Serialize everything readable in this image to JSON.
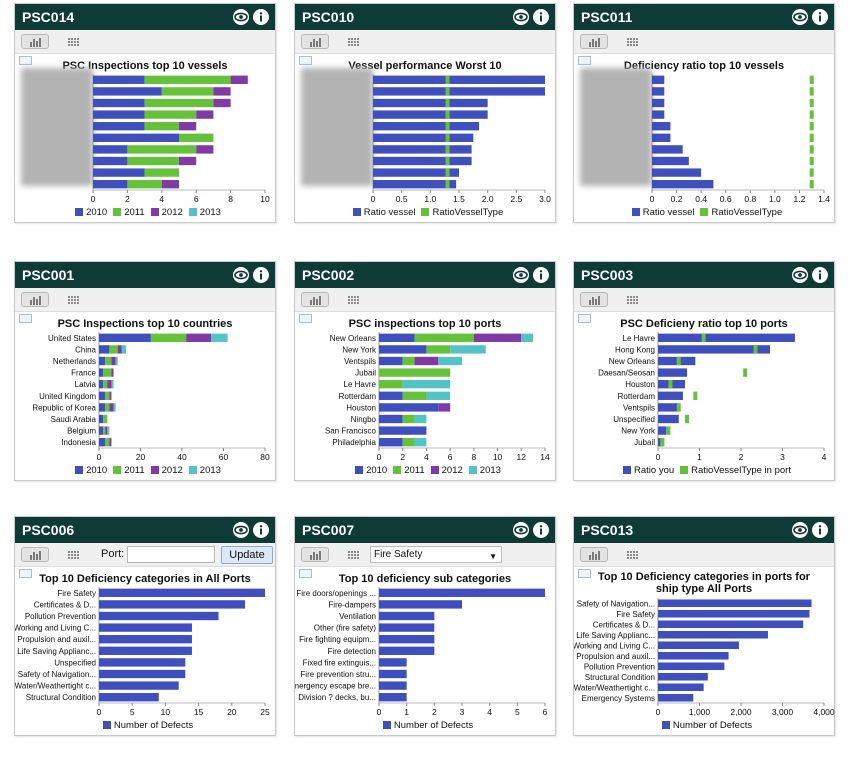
{
  "colors": {
    "header": "#0e3b35",
    "s2010": "#3f4fbe",
    "s2011": "#66c13a",
    "s2012": "#7f3aa3",
    "s2013": "#53c3c7",
    "single": "#3f4fbe",
    "ratio_type": "#66c13a"
  },
  "icons": [
    "eye-icon",
    "info-icon",
    "bar-chart-view-icon",
    "table-view-icon",
    "export-image-icon"
  ],
  "widgets": {
    "psc014": {
      "id": "PSC014",
      "chart_data": {
        "type": "bar",
        "orientation": "horizontal",
        "stacked": true,
        "title": "PSC Inspections top 10 vessels",
        "categories_hidden": true,
        "xlim": [
          0,
          10
        ],
        "xticks": [
          "0",
          "2",
          "4",
          "6",
          "8",
          "10"
        ],
        "legend": [
          "2010",
          "2011",
          "2012",
          "2013"
        ],
        "series": [
          {
            "name": "2010",
            "values": [
              3,
              4,
              3,
              3,
              3,
              5,
              2,
              2,
              3,
              2
            ]
          },
          {
            "name": "2011",
            "values": [
              5,
              3,
              4,
              3,
              2,
              2,
              4,
              3,
              2,
              2
            ]
          },
          {
            "name": "2012",
            "values": [
              1,
              1,
              1,
              1,
              1,
              0,
              1,
              1,
              0,
              1
            ]
          },
          {
            "name": "2013",
            "values": [
              0,
              0,
              0,
              0,
              0,
              0,
              0,
              0,
              0,
              0
            ]
          }
        ]
      }
    },
    "psc010": {
      "id": "PSC010",
      "chart_data": {
        "type": "bar",
        "orientation": "horizontal",
        "title": "Vessel performance Worst 10",
        "categories_hidden": true,
        "xlim": [
          0,
          3
        ],
        "xticks": [
          "0",
          "0.5",
          "1.0",
          "1.5",
          "2.0",
          "2.5",
          "3.0"
        ],
        "legend": [
          "Ratio vessel",
          "RatioVesselType"
        ],
        "series": [
          {
            "name": "Ratio vessel",
            "values": [
              3.0,
              3.0,
              2.0,
              2.0,
              1.85,
              1.75,
              1.72,
              1.72,
              1.5,
              1.45
            ]
          },
          {
            "name": "RatioVesselType",
            "values": [
              1.3,
              1.3,
              1.3,
              1.3,
              1.3,
              1.3,
              1.3,
              1.3,
              1.3,
              1.3
            ]
          }
        ]
      }
    },
    "psc011": {
      "id": "PSC011",
      "chart_data": {
        "type": "bar",
        "orientation": "horizontal",
        "title": "Deficiency ratio top 10 vessels",
        "categories_hidden": true,
        "xlim": [
          0,
          1.4
        ],
        "xticks": [
          "0",
          "0.2",
          "0.4",
          "0.6",
          "0.8",
          "1.0",
          "1.2",
          "1.4"
        ],
        "legend": [
          "Ratio vessel",
          "RatioVesselType"
        ],
        "series": [
          {
            "name": "Ratio vessel",
            "values": [
              0.1,
              0.1,
              0.1,
              0.1,
              0.15,
              0.15,
              0.25,
              0.3,
              0.4,
              0.5
            ]
          },
          {
            "name": "RatioVesselType",
            "values": [
              1.3,
              1.3,
              1.3,
              1.3,
              1.3,
              1.3,
              1.3,
              1.3,
              1.3,
              1.3
            ]
          }
        ]
      }
    },
    "psc001": {
      "id": "PSC001",
      "chart_data": {
        "type": "bar",
        "orientation": "horizontal",
        "stacked": true,
        "title": "PSC Inspections top 10 countries",
        "categories": [
          "United States",
          "China",
          "Netherlands",
          "France",
          "Latvia",
          "United Kingdom",
          "Republic of Korea",
          "Saudi Arabia",
          "Belgium",
          "Indonesia"
        ],
        "xlim": [
          0,
          80
        ],
        "xticks": [
          "0",
          "20",
          "40",
          "60",
          "80"
        ],
        "legend": [
          "2010",
          "2011",
          "2012",
          "2013"
        ],
        "series": [
          {
            "name": "2010",
            "values": [
              25,
              5,
              3,
              2,
              2,
              3,
              3,
              2,
              2,
              3
            ]
          },
          {
            "name": "2011",
            "values": [
              17,
              4,
              3,
              4,
              2,
              2,
              2,
              2,
              1,
              2
            ]
          },
          {
            "name": "2012",
            "values": [
              12,
              2,
              2,
              1,
              2,
              1,
              2,
              0,
              1,
              1
            ]
          },
          {
            "name": "2013",
            "values": [
              8,
              2,
              1,
              0,
              1,
              0,
              1,
              0,
              1,
              0
            ]
          }
        ]
      }
    },
    "psc002": {
      "id": "PSC002",
      "chart_data": {
        "type": "bar",
        "orientation": "horizontal",
        "stacked": true,
        "title": "PSC inspections top 10 ports",
        "categories": [
          "New Orleans",
          "New York",
          "Ventspils",
          "Jubail",
          "Le Havre",
          "Rotterdam",
          "Houston",
          "Ningbo",
          "San Francisco",
          "Philadelphia"
        ],
        "xlim": [
          0,
          14
        ],
        "xticks": [
          "0",
          "2",
          "4",
          "6",
          "8",
          "10",
          "12",
          "14"
        ],
        "legend": [
          "2010",
          "2011",
          "2012",
          "2013"
        ],
        "series": [
          {
            "name": "2010",
            "values": [
              3,
              4,
              2,
              0,
              0,
              2,
              5,
              2,
              4,
              2
            ]
          },
          {
            "name": "2011",
            "values": [
              5,
              2,
              1,
              6,
              2,
              2,
              0,
              1,
              0,
              1
            ]
          },
          {
            "name": "2012",
            "values": [
              4,
              0,
              2,
              0,
              0,
              0,
              1,
              0,
              0,
              0
            ]
          },
          {
            "name": "2013",
            "values": [
              1,
              3,
              2,
              0,
              4,
              2,
              0,
              1,
              0,
              1
            ]
          }
        ]
      }
    },
    "psc003": {
      "id": "PSC003",
      "chart_data": {
        "type": "bar",
        "orientation": "horizontal",
        "title": "PSC Deficieny ratio top 10 ports",
        "categories": [
          "Le Havre",
          "Hong Kong",
          "New Orleans",
          "Daesan/Seosan",
          "Houston",
          "Rotterdam",
          "Ventspils",
          "Unspecified",
          "New York",
          "Jubail"
        ],
        "xlim": [
          0,
          4
        ],
        "xticks": [
          "0",
          "1",
          "2",
          "3",
          "4"
        ],
        "legend": [
          "Ratio you",
          "RatioVesselType in port"
        ],
        "series": [
          {
            "name": "Ratio you",
            "values": [
              3.3,
              2.7,
              0.9,
              0.7,
              0.65,
              0.6,
              0.5,
              0.5,
              0.2,
              0.15
            ]
          },
          {
            "name": "RatioVesselType in port",
            "values": [
              1.1,
              2.35,
              0.5,
              2.1,
              0.3,
              0.9,
              0.5,
              0.7,
              0.25,
              0.1
            ]
          }
        ]
      }
    },
    "psc006": {
      "id": "PSC006",
      "port_label": "Port:",
      "port_value": "",
      "update_label": "Update",
      "chart_data": {
        "type": "bar",
        "orientation": "horizontal",
        "title": "Top 10 Deficiency categories in All Ports",
        "categories": [
          "Fire Safety",
          "Certificates & D...",
          "Pollution Prevention",
          "Working and Living C...",
          "Propulsion and auxil...",
          "Life Saving Applianc...",
          "Unspecified",
          "Safety of Navigation...",
          "Water/Weathertight c...",
          "Structural Condition"
        ],
        "xlim": [
          0,
          25
        ],
        "xticks": [
          "0",
          "5",
          "10",
          "15",
          "20",
          "25"
        ],
        "legend": [
          "Number of Defects"
        ],
        "series": [
          {
            "name": "Number of Defects",
            "values": [
              25,
              22,
              18,
              14,
              14,
              14,
              13,
              13,
              12,
              9
            ]
          }
        ]
      }
    },
    "psc007": {
      "id": "PSC007",
      "select_value": "Fire Safety",
      "chart_data": {
        "type": "bar",
        "orientation": "horizontal",
        "title": "Top 10 deficiency sub categories",
        "categories": [
          "Fire doors/openings ...",
          "Fire-dampers",
          "Ventilation",
          "Other (fire safety)",
          "Fire fighting equipm...",
          "Fire detection",
          "Fixed fire extinguis...",
          "Fire prevention stru...",
          "Emergency escape bre...",
          "Division ? decks, bu..."
        ],
        "xlim": [
          0,
          6
        ],
        "xticks": [
          "0",
          "1",
          "2",
          "3",
          "4",
          "5",
          "6"
        ],
        "legend": [
          "Number of Defects"
        ],
        "series": [
          {
            "name": "Number of Defects",
            "values": [
              6,
              3,
              2,
              2,
              2,
              2,
              1,
              1,
              1,
              1
            ]
          }
        ]
      }
    },
    "psc013": {
      "id": "PSC013",
      "chart_data": {
        "type": "bar",
        "orientation": "horizontal",
        "title": "Top 10 Deficiency categories in ports for ship type All Ports",
        "title_lines": [
          "Top 10 Deficiency categories in ports for",
          "ship type All Ports"
        ],
        "categories": [
          "Safety of Navigation...",
          "Fire Safety",
          "Certificates & D...",
          "Life Saving Applianc...",
          "Working and Living C...",
          "Propulsion and auxil...",
          "Pollution Prevention",
          "Structural Condition",
          "Water/Weathertight c...",
          "Emergency Systems"
        ],
        "xlim": [
          0,
          4000
        ],
        "xticks": [
          "0",
          "1,000",
          "2,000",
          "3,000",
          "4,000"
        ],
        "legend": [
          "Number of Defects"
        ],
        "series": [
          {
            "name": "Number of Defects",
            "values": [
              3700,
              3650,
              3500,
              2650,
              1950,
              1700,
              1600,
              1200,
              1100,
              850
            ]
          }
        ]
      }
    }
  }
}
